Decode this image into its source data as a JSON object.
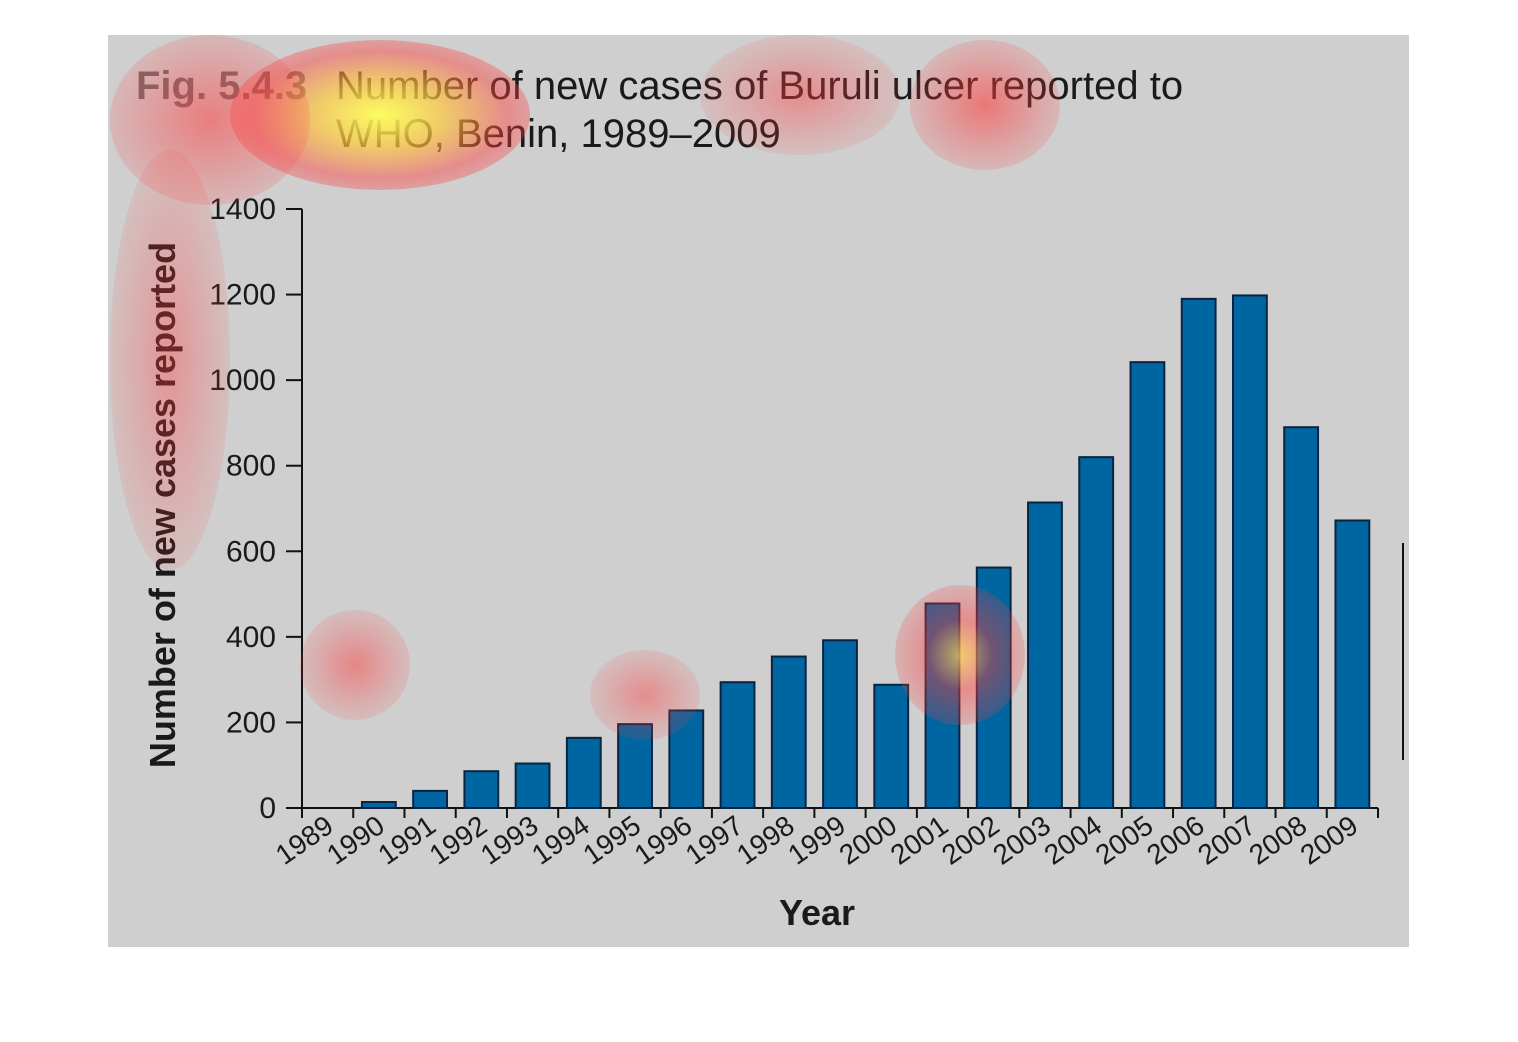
{
  "figure": {
    "label": "Fig. 5.4.3",
    "title": "Number of new cases of Buruli ulcer reported to WHO, Benin, 1989–2009"
  },
  "colors": {
    "panel_background": "#cfcfcf",
    "bar_fill": "#0066a1",
    "bar_stroke": "#0b2340",
    "heatmap_overlay": "#ff3333"
  },
  "chart_data": {
    "type": "bar",
    "title": "Number of new cases of Buruli ulcer reported to WHO, Benin, 1989–2009",
    "xlabel": "Year",
    "ylabel": "Number of new cases reported",
    "ylim": [
      0,
      1400
    ],
    "yticks": [
      "0",
      "200",
      "400",
      "600",
      "800",
      "1000",
      "1200",
      "1400"
    ],
    "categories": [
      "1989",
      "1990",
      "1991",
      "1992",
      "1993",
      "1994",
      "1995",
      "1996",
      "1997",
      "1998",
      "1999",
      "2000",
      "2001",
      "2002",
      "2003",
      "2004",
      "2005",
      "2006",
      "2007",
      "2008",
      "2009"
    ],
    "values": [
      0,
      14,
      40,
      86,
      104,
      164,
      196,
      228,
      294,
      354,
      392,
      288,
      478,
      562,
      714,
      820,
      1042,
      1190,
      1198,
      890,
      672
    ],
    "grid": false,
    "legend": "none"
  }
}
